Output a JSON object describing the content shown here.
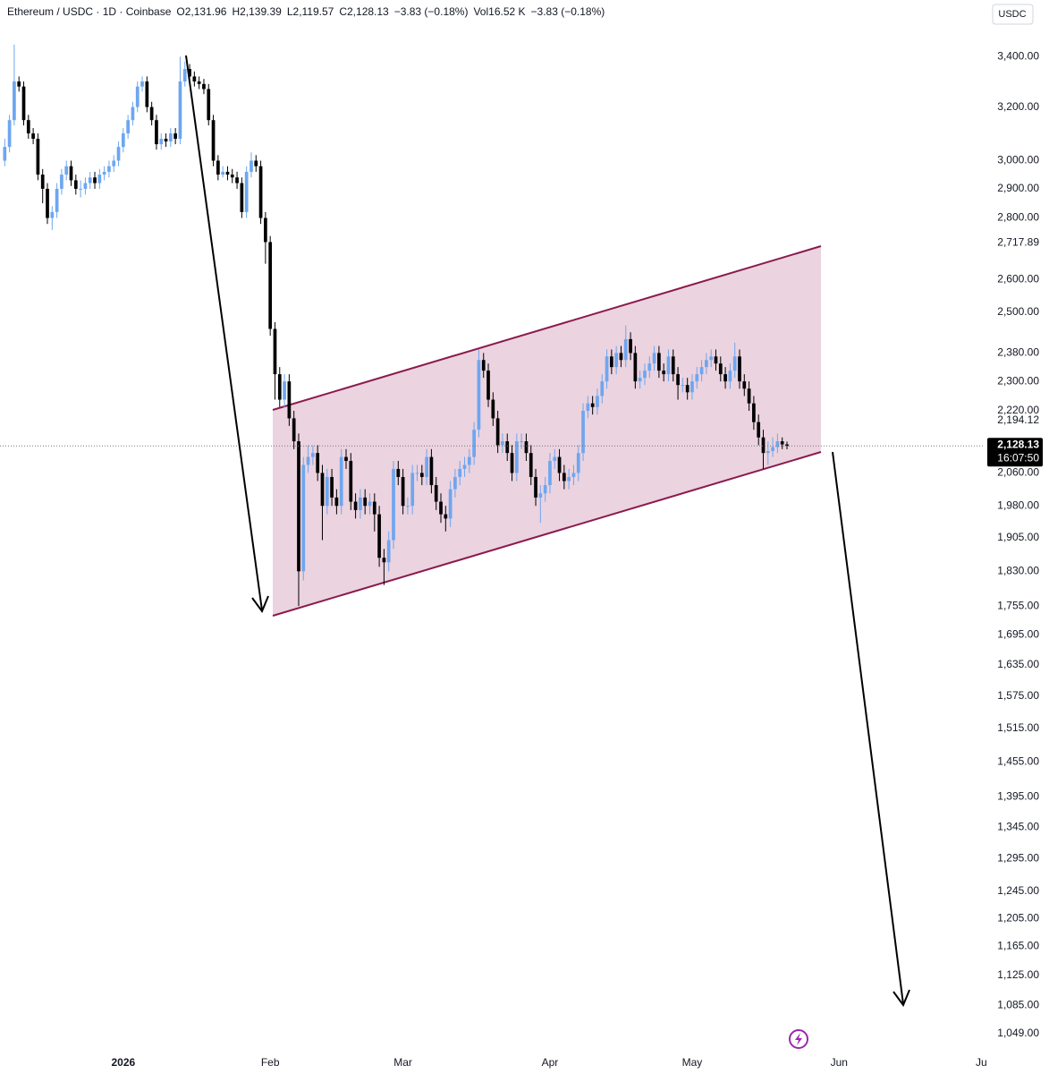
{
  "header": {
    "symbol": "Ethereum / USDC · 1D · Coinbase",
    "open": "O2,131.96",
    "high": "H2,139.39",
    "low": "L2,119.57",
    "close": "C2,128.13",
    "change": "−3.83 (−0.18%)",
    "volume": "Vol16.52 K",
    "volume_change": "−3.83 (−0.18%)"
  },
  "chart_data": {
    "type": "candlestick",
    "currency": "USDC",
    "log_scale": true,
    "grid": false,
    "up_color": "#6ea6f0",
    "down_color": "#000000",
    "xlim": [
      -26,
      181.5
    ],
    "xticks": [
      {
        "value": 0,
        "label": "2026"
      },
      {
        "value": 31,
        "label": "Feb"
      },
      {
        "value": 59,
        "label": "Mar"
      },
      {
        "value": 90,
        "label": "Apr"
      },
      {
        "value": 120,
        "label": "May"
      },
      {
        "value": 151,
        "label": "Jun"
      },
      {
        "value": 181,
        "label": "Ju"
      }
    ],
    "ylim": [
      1021,
      3640
    ],
    "yticks": [
      {
        "value": 3400,
        "label": "3,400.00"
      },
      {
        "value": 3200,
        "label": "3,200.00"
      },
      {
        "value": 3000,
        "label": "3,000.00"
      },
      {
        "value": 2900,
        "label": "2,900.00"
      },
      {
        "value": 2800,
        "label": "2,800.00"
      },
      {
        "value": 2717.89,
        "label": "2,717.89"
      },
      {
        "value": 2600,
        "label": "2,600.00"
      },
      {
        "value": 2500,
        "label": "2,500.00"
      },
      {
        "value": 2380,
        "label": "2,380.00"
      },
      {
        "value": 2300,
        "label": "2,300.00"
      },
      {
        "value": 2220,
        "label": "2,220.00"
      },
      {
        "value": 2194.12,
        "label": "2,194.12"
      },
      {
        "value": 2060,
        "label": "2,060.00"
      },
      {
        "value": 1980,
        "label": "1,980.00"
      },
      {
        "value": 1905,
        "label": "1,905.00"
      },
      {
        "value": 1830,
        "label": "1,830.00"
      },
      {
        "value": 1755,
        "label": "1,755.00"
      },
      {
        "value": 1695,
        "label": "1,695.00"
      },
      {
        "value": 1635,
        "label": "1,635.00"
      },
      {
        "value": 1575,
        "label": "1,575.00"
      },
      {
        "value": 1515,
        "label": "1,515.00"
      },
      {
        "value": 1455,
        "label": "1,455.00"
      },
      {
        "value": 1395,
        "label": "1,395.00"
      },
      {
        "value": 1345,
        "label": "1,345.00"
      },
      {
        "value": 1295,
        "label": "1,295.00"
      },
      {
        "value": 1245,
        "label": "1,245.00"
      },
      {
        "value": 1205,
        "label": "1,205.00"
      },
      {
        "value": 1165,
        "label": "1,165.00"
      },
      {
        "value": 1125,
        "label": "1,125.00"
      },
      {
        "value": 1085,
        "label": "1,085.00"
      },
      {
        "value": 1049,
        "label": "1,049.00"
      }
    ],
    "last_price": {
      "value": 2128.13,
      "label": "2,128.13"
    },
    "countdown": "16:07:50",
    "x": [
      -25,
      -24,
      -23,
      -22,
      -21,
      -20,
      -19,
      -18,
      -17,
      -16,
      -15,
      -14,
      -13,
      -12,
      -11,
      -10,
      -9,
      -8,
      -7,
      -6,
      -5,
      -4,
      -3,
      -2,
      -1,
      0,
      1,
      2,
      3,
      4,
      5,
      6,
      7,
      8,
      9,
      10,
      11,
      12,
      13,
      14,
      15,
      16,
      17,
      18,
      19,
      20,
      21,
      22,
      23,
      24,
      25,
      26,
      27,
      28,
      29,
      30,
      31,
      32,
      33,
      34,
      35,
      36,
      37,
      38,
      39,
      40,
      41,
      42,
      43,
      44,
      45,
      46,
      47,
      48,
      49,
      50,
      51,
      52,
      53,
      54,
      55,
      56,
      57,
      58,
      59,
      60,
      61,
      62,
      63,
      64,
      65,
      66,
      67,
      68,
      69,
      70,
      71,
      72,
      73,
      74,
      75,
      76,
      77,
      78,
      79,
      80,
      81,
      82,
      83,
      84,
      85,
      86,
      87,
      88,
      89,
      90,
      91,
      92,
      93,
      94,
      95,
      96,
      97,
      98,
      99,
      100,
      101,
      102,
      103,
      104,
      105,
      106,
      107,
      108,
      109,
      110,
      111,
      112,
      113,
      114,
      115,
      116,
      117,
      118,
      119,
      120,
      121,
      122,
      123,
      124,
      125,
      126,
      127,
      128,
      129,
      130,
      131,
      132,
      133,
      134,
      135,
      136,
      137,
      138,
      139,
      140
    ],
    "candles": [
      [
        3000,
        3080,
        2980,
        3050
      ],
      [
        3050,
        3170,
        3030,
        3150
      ],
      [
        3150,
        3450,
        3130,
        3300
      ],
      [
        3300,
        3320,
        3260,
        3280
      ],
      [
        3280,
        3300,
        3130,
        3150
      ],
      [
        3150,
        3170,
        3080,
        3100
      ],
      [
        3100,
        3120,
        3060,
        3080
      ],
      [
        3080,
        3100,
        2930,
        2950
      ],
      [
        2950,
        2970,
        2850,
        2900
      ],
      [
        2900,
        2920,
        2780,
        2800
      ],
      [
        2800,
        2840,
        2760,
        2820
      ],
      [
        2820,
        2920,
        2800,
        2900
      ],
      [
        2900,
        2970,
        2880,
        2950
      ],
      [
        2950,
        3000,
        2930,
        2980
      ],
      [
        2980,
        3000,
        2910,
        2930
      ],
      [
        2930,
        2950,
        2880,
        2900
      ],
      [
        2900,
        2930,
        2870,
        2900
      ],
      [
        2900,
        2940,
        2880,
        2920
      ],
      [
        2920,
        2960,
        2900,
        2940
      ],
      [
        2940,
        2960,
        2900,
        2920
      ],
      [
        2920,
        2970,
        2900,
        2950
      ],
      [
        2950,
        2980,
        2930,
        2960
      ],
      [
        2960,
        3000,
        2940,
        2980
      ],
      [
        2980,
        3020,
        2960,
        3000
      ],
      [
        3000,
        3070,
        2980,
        3050
      ],
      [
        3050,
        3120,
        3030,
        3100
      ],
      [
        3100,
        3170,
        3080,
        3150
      ],
      [
        3150,
        3220,
        3130,
        3200
      ],
      [
        3200,
        3300,
        3180,
        3280
      ],
      [
        3280,
        3320,
        3260,
        3300
      ],
      [
        3300,
        3320,
        3180,
        3200
      ],
      [
        3200,
        3220,
        3130,
        3150
      ],
      [
        3150,
        3170,
        3040,
        3060
      ],
      [
        3060,
        3100,
        3040,
        3080
      ],
      [
        3080,
        3100,
        3050,
        3070
      ],
      [
        3070,
        3120,
        3050,
        3100
      ],
      [
        3100,
        3120,
        3060,
        3080
      ],
      [
        3080,
        3400,
        3060,
        3300
      ],
      [
        3300,
        3380,
        3280,
        3350
      ],
      [
        3350,
        3370,
        3300,
        3320
      ],
      [
        3320,
        3340,
        3280,
        3300
      ],
      [
        3300,
        3320,
        3270,
        3290
      ],
      [
        3290,
        3310,
        3250,
        3270
      ],
      [
        3270,
        3290,
        3130,
        3150
      ],
      [
        3150,
        3170,
        2980,
        3000
      ],
      [
        3000,
        3020,
        2930,
        2950
      ],
      [
        2950,
        2980,
        2940,
        2960
      ],
      [
        2960,
        2980,
        2930,
        2950
      ],
      [
        2950,
        2970,
        2920,
        2940
      ],
      [
        2940,
        2960,
        2900,
        2920
      ],
      [
        2920,
        2940,
        2800,
        2820
      ],
      [
        2820,
        2980,
        2800,
        2960
      ],
      [
        2960,
        3030,
        2940,
        3000
      ],
      [
        3000,
        3020,
        2960,
        2980
      ],
      [
        2980,
        3000,
        2780,
        2800
      ],
      [
        2800,
        2820,
        2650,
        2720
      ],
      [
        2720,
        2740,
        2430,
        2450
      ],
      [
        2450,
        2470,
        2250,
        2320
      ],
      [
        2320,
        2340,
        2230,
        2250
      ],
      [
        2250,
        2320,
        2230,
        2300
      ],
      [
        2300,
        2320,
        2180,
        2200
      ],
      [
        2200,
        2220,
        2120,
        2140
      ],
      [
        2140,
        2160,
        1755,
        1830
      ],
      [
        1830,
        2100,
        1810,
        2080
      ],
      [
        2080,
        2130,
        2060,
        2100
      ],
      [
        2100,
        2130,
        2080,
        2110
      ],
      [
        2110,
        2130,
        2040,
        2060
      ],
      [
        2060,
        2080,
        1900,
        1980
      ],
      [
        1980,
        2070,
        1960,
        2050
      ],
      [
        2050,
        2070,
        1980,
        2000
      ],
      [
        2000,
        2020,
        1960,
        1980
      ],
      [
        1980,
        2120,
        1960,
        2100
      ],
      [
        2100,
        2120,
        2070,
        2090
      ],
      [
        2090,
        2110,
        1970,
        1990
      ],
      [
        1990,
        2010,
        1950,
        1970
      ],
      [
        1970,
        2020,
        1950,
        2000
      ],
      [
        2000,
        2020,
        1960,
        1980
      ],
      [
        1980,
        2010,
        1960,
        1990
      ],
      [
        1990,
        2010,
        1920,
        1960
      ],
      [
        1960,
        1980,
        1840,
        1860
      ],
      [
        1860,
        1880,
        1800,
        1850
      ],
      [
        1850,
        1920,
        1830,
        1900
      ],
      [
        1900,
        2090,
        1880,
        2070
      ],
      [
        2070,
        2090,
        2030,
        2050
      ],
      [
        2050,
        2070,
        1960,
        1980
      ],
      [
        1980,
        2000,
        1960,
        1980
      ],
      [
        1980,
        2080,
        1960,
        2060
      ],
      [
        2060,
        2080,
        2040,
        2060
      ],
      [
        2060,
        2080,
        2030,
        2050
      ],
      [
        2050,
        2120,
        2030,
        2100
      ],
      [
        2100,
        2120,
        2010,
        2030
      ],
      [
        2030,
        2050,
        1970,
        1990
      ],
      [
        1990,
        2010,
        1940,
        1960
      ],
      [
        1960,
        1980,
        1920,
        1950
      ],
      [
        1950,
        2040,
        1930,
        2020
      ],
      [
        2020,
        2070,
        2000,
        2050
      ],
      [
        2050,
        2090,
        2030,
        2070
      ],
      [
        2070,
        2100,
        2050,
        2080
      ],
      [
        2080,
        2120,
        2060,
        2100
      ],
      [
        2100,
        2190,
        2080,
        2170
      ],
      [
        2170,
        2390,
        2150,
        2360
      ],
      [
        2360,
        2380,
        2310,
        2330
      ],
      [
        2330,
        2350,
        2230,
        2250
      ],
      [
        2250,
        2270,
        2180,
        2200
      ],
      [
        2200,
        2220,
        2110,
        2130
      ],
      [
        2130,
        2160,
        2110,
        2140
      ],
      [
        2140,
        2160,
        2090,
        2110
      ],
      [
        2110,
        2130,
        2040,
        2060
      ],
      [
        2060,
        2160,
        2040,
        2140
      ],
      [
        2140,
        2160,
        2120,
        2140
      ],
      [
        2140,
        2160,
        2090,
        2110
      ],
      [
        2110,
        2130,
        2030,
        2050
      ],
      [
        2050,
        2070,
        1980,
        2000
      ],
      [
        2000,
        2030,
        1940,
        2010
      ],
      [
        2010,
        2050,
        1990,
        2030
      ],
      [
        2030,
        2110,
        2010,
        2090
      ],
      [
        2090,
        2120,
        2070,
        2100
      ],
      [
        2100,
        2120,
        2040,
        2060
      ],
      [
        2060,
        2080,
        2020,
        2040
      ],
      [
        2040,
        2070,
        2020,
        2050
      ],
      [
        2050,
        2080,
        2030,
        2060
      ],
      [
        2060,
        2130,
        2040,
        2110
      ],
      [
        2110,
        2240,
        2090,
        2220
      ],
      [
        2220,
        2260,
        2200,
        2240
      ],
      [
        2240,
        2260,
        2210,
        2230
      ],
      [
        2230,
        2280,
        2210,
        2260
      ],
      [
        2260,
        2320,
        2240,
        2300
      ],
      [
        2300,
        2390,
        2280,
        2370
      ],
      [
        2370,
        2390,
        2320,
        2340
      ],
      [
        2340,
        2400,
        2320,
        2380
      ],
      [
        2380,
        2400,
        2340,
        2360
      ],
      [
        2360,
        2460,
        2340,
        2420
      ],
      [
        2420,
        2440,
        2360,
        2380
      ],
      [
        2380,
        2400,
        2280,
        2300
      ],
      [
        2300,
        2330,
        2280,
        2310
      ],
      [
        2310,
        2350,
        2290,
        2330
      ],
      [
        2330,
        2370,
        2310,
        2350
      ],
      [
        2350,
        2400,
        2330,
        2380
      ],
      [
        2380,
        2400,
        2310,
        2330
      ],
      [
        2330,
        2350,
        2300,
        2320
      ],
      [
        2320,
        2390,
        2300,
        2370
      ],
      [
        2370,
        2390,
        2300,
        2320
      ],
      [
        2320,
        2340,
        2250,
        2290
      ],
      [
        2290,
        2310,
        2270,
        2290
      ],
      [
        2290,
        2310,
        2250,
        2270
      ],
      [
        2270,
        2320,
        2250,
        2300
      ],
      [
        2300,
        2340,
        2280,
        2320
      ],
      [
        2320,
        2360,
        2300,
        2340
      ],
      [
        2340,
        2380,
        2320,
        2360
      ],
      [
        2360,
        2390,
        2340,
        2370
      ],
      [
        2370,
        2390,
        2330,
        2350
      ],
      [
        2350,
        2370,
        2300,
        2320
      ],
      [
        2320,
        2340,
        2280,
        2300
      ],
      [
        2300,
        2350,
        2280,
        2330
      ],
      [
        2330,
        2410,
        2310,
        2370
      ],
      [
        2370,
        2390,
        2280,
        2300
      ],
      [
        2300,
        2320,
        2260,
        2280
      ],
      [
        2280,
        2300,
        2220,
        2240
      ],
      [
        2240,
        2260,
        2170,
        2190
      ],
      [
        2190,
        2210,
        2130,
        2150
      ],
      [
        2150,
        2170,
        2070,
        2110
      ],
      [
        2110,
        2140,
        2080,
        2115
      ],
      [
        2115,
        2150,
        2100,
        2125
      ],
      [
        2125,
        2160,
        2110,
        2140
      ],
      [
        2140,
        2150,
        2120,
        2131.96
      ],
      [
        2131.96,
        2139.39,
        2119.57,
        2128.13
      ]
    ]
  }
}
